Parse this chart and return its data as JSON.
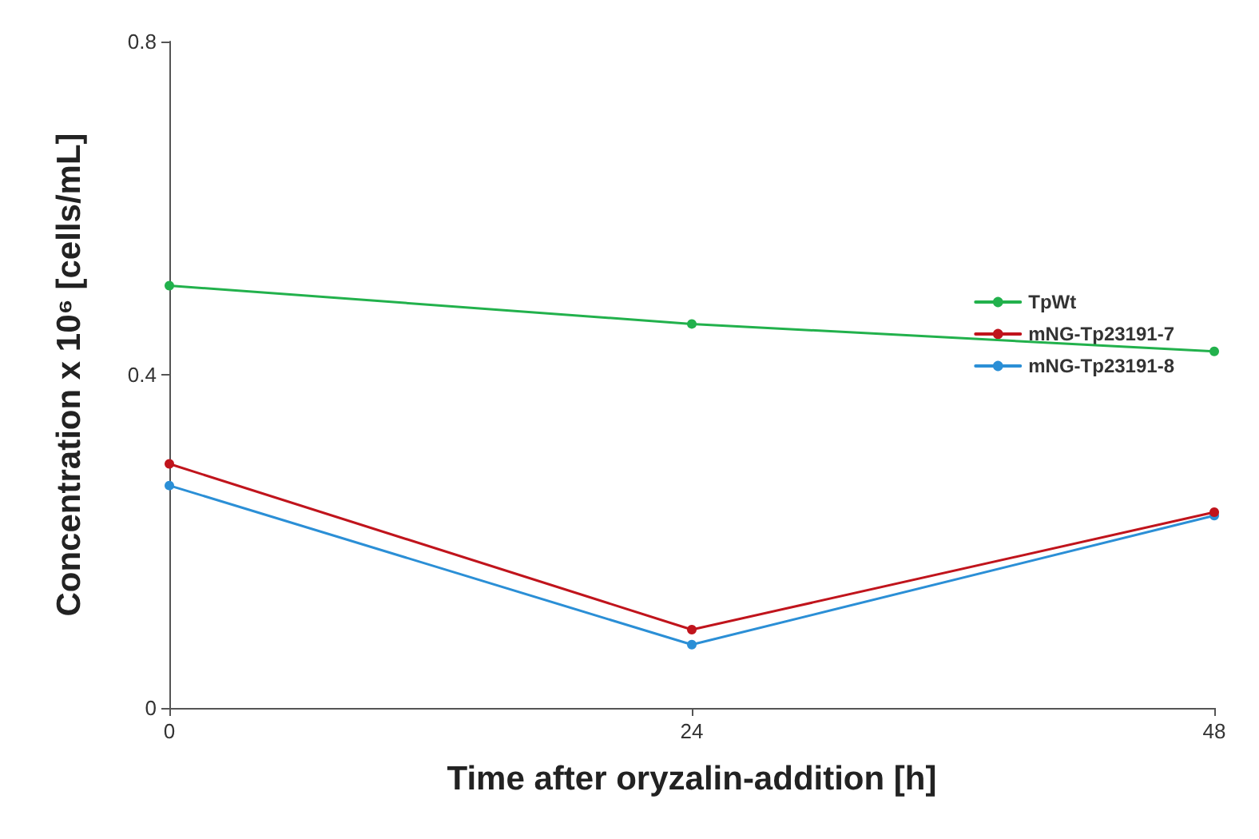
{
  "chart_data": {
    "type": "line",
    "xlabel": "Time after oryzalin-addition [h]",
    "ylabel": "Concentration x 10⁶ [cells/mL]",
    "x": [
      0,
      24,
      48
    ],
    "xlim": [
      0,
      48
    ],
    "xticks": [
      0,
      24,
      48
    ],
    "ylim": [
      0,
      0.8
    ],
    "yticks": [
      0,
      0.4,
      0.8
    ],
    "series": [
      {
        "name": "TpWt",
        "color": "#22b14c",
        "values": [
          0.507,
          0.461,
          0.428
        ]
      },
      {
        "name": "mNG-Tp23191-7",
        "color": "#c0141c",
        "values": [
          0.293,
          0.094,
          0.235
        ]
      },
      {
        "name": "mNG-Tp23191-8",
        "color": "#2b8fd6",
        "values": [
          0.267,
          0.076,
          0.231
        ]
      }
    ],
    "marker": "circle",
    "grid": false,
    "legend": "top right"
  }
}
